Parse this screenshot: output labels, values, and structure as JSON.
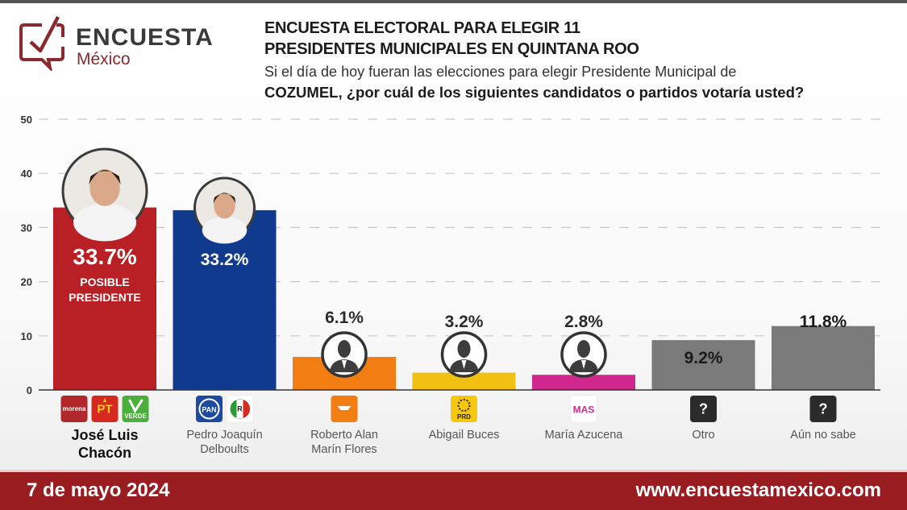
{
  "brand": {
    "name": "ENCUESTA",
    "sub": "México",
    "color": "#8a2a2e"
  },
  "header": {
    "title_line1": "ENCUESTA ELECTORAL PARA ELEGIR 11",
    "title_line2": "PRESIDENTES MUNICIPALES EN QUINTANA ROO",
    "question_line1": "Si el día de hoy fueran las elecciones para elegir Presidente Municipal de",
    "question_line2": "COZUMEL, ¿por cuál de los siguientes candidatos o partidos votaría usted?"
  },
  "footer": {
    "date": "7 de mayo 2024",
    "url": "www.encuestamexico.com",
    "color": "#981c20"
  },
  "chart_data": {
    "type": "bar",
    "title": "ENCUESTA ELECTORAL PARA ELEGIR 11 PRESIDENTES MUNICIPALES EN QUINTANA ROO",
    "xlabel": "",
    "ylabel": "",
    "ylim": [
      0,
      50
    ],
    "yticks": [
      0,
      10,
      20,
      30,
      40,
      50
    ],
    "grid": true,
    "categories": [
      "José Luis Chacón",
      "Pedro Joaquín Delboults",
      "Roberto Alan Marín Flores",
      "Abigail Buces",
      "María Azucena",
      "Otro",
      "Aún no sabe"
    ],
    "category_lines": [
      [
        "José Luis",
        "Chacón"
      ],
      [
        "Pedro Joaquín",
        "Delboults"
      ],
      [
        "Roberto Alan",
        "Marín Flores"
      ],
      [
        "Abigail Buces"
      ],
      [
        "María Azucena"
      ],
      [
        "Otro"
      ],
      [
        "Aún no sabe"
      ]
    ],
    "values": [
      33.7,
      33.2,
      6.1,
      3.2,
      2.8,
      9.2,
      11.8
    ],
    "labels": [
      "33.7%",
      "33.2%",
      "6.1%",
      "3.2%",
      "2.8%",
      "9.2%",
      "11.8%"
    ],
    "colors": [
      "#b82025",
      "#0f3a8e",
      "#f27d12",
      "#f2c012",
      "#d1288f",
      "#7a7a7a",
      "#7a7a7a"
    ],
    "highlight": {
      "index": 0,
      "text": [
        "POSIBLE",
        "PRESIDENTE"
      ]
    },
    "avatars": [
      "photo",
      "photo",
      "silhouette",
      "silhouette",
      "silhouette",
      "none",
      "none"
    ],
    "parties": [
      [
        {
          "name": "morena",
          "label": "morena",
          "bg": "#b0282c",
          "fg": "#ffffff"
        },
        {
          "name": "pt",
          "label": "PT",
          "bg": "#d62a20",
          "fg": "#f5d10f"
        },
        {
          "name": "verde",
          "label": "VERDE",
          "bg": "#4caf3c",
          "fg": "#ffffff"
        }
      ],
      [
        {
          "name": "pan",
          "label": "PAN",
          "bg": "#1c4aa0",
          "fg": "#ffffff"
        },
        {
          "name": "pri",
          "label": "PRI",
          "bg": "#ffffff",
          "fg": "#d62a20"
        }
      ],
      [
        {
          "name": "movimiento-ciudadano",
          "label": "MC",
          "bg": "#f27d12",
          "fg": "#ffffff"
        }
      ],
      [
        {
          "name": "prd",
          "label": "PRD",
          "bg": "#f5c80f",
          "fg": "#222222"
        }
      ],
      [
        {
          "name": "mas",
          "label": "MAS",
          "bg": "#ffffff",
          "fg": "#d1288f"
        }
      ],
      [
        {
          "name": "unknown",
          "label": "?",
          "bg": "#2b2b2b",
          "fg": "#ffffff"
        }
      ],
      [
        {
          "name": "unknown",
          "label": "?",
          "bg": "#2b2b2b",
          "fg": "#ffffff"
        }
      ]
    ]
  }
}
